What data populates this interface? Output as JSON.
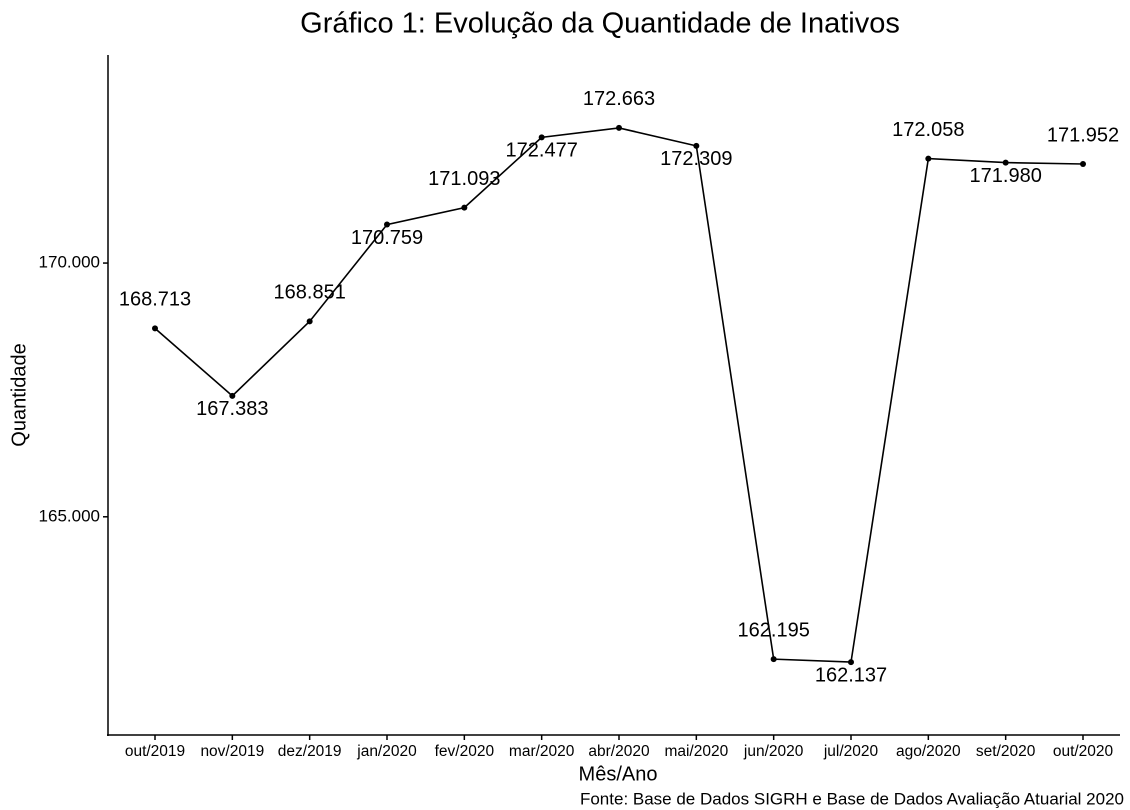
{
  "chart_data": {
    "type": "line",
    "title": "Gráfico 1: Evolução da Quantidade de Inativos",
    "x_label": "Mês/Ano",
    "y_label": "Quantidade",
    "caption": "Fonte: Base de Dados SIGRH e Base de Dados Avaliação Atuarial 2020",
    "categories": [
      "out/2019",
      "nov/2019",
      "dez/2019",
      "jan/2020",
      "fev/2020",
      "mar/2020",
      "abr/2020",
      "mai/2020",
      "jun/2020",
      "jul/2020",
      "ago/2020",
      "set/2020",
      "out/2020"
    ],
    "series": [
      {
        "name": "Quantidade",
        "color": "#000000",
        "values": [
          168713,
          167383,
          168851,
          170759,
          171093,
          172477,
          172663,
          172309,
          162195,
          162137,
          172058,
          171980,
          171952
        ],
        "value_labels": [
          "168.713",
          "167.383",
          "168.851",
          "170.759",
          "171.093",
          "172.477",
          "172.663",
          "172.309",
          "162.195",
          "162.137",
          "172.058",
          "171.980",
          "171.952"
        ]
      }
    ],
    "ylim": [
      160700,
      174100
    ],
    "yticks": [
      {
        "value": 165000,
        "label": "165.000"
      },
      {
        "value": 170000,
        "label": "170.000"
      }
    ],
    "grid": false
  }
}
